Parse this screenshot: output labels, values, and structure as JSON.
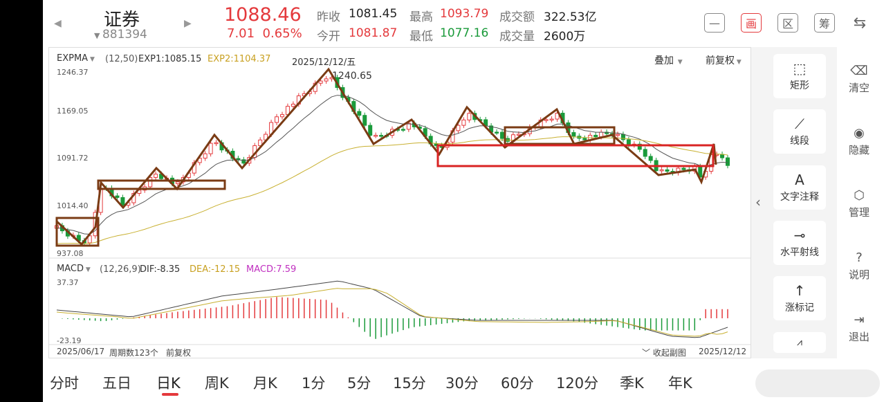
{
  "header": {
    "title": "证券",
    "code": "881394",
    "price": "1088.46",
    "change": "7.01",
    "change_pct": "0.65%",
    "stats": {
      "prev_close_label": "昨收",
      "prev_close": "1081.45",
      "high_label": "最高",
      "high": "1093.79",
      "turnover_label": "成交额",
      "turnover": "322.53亿",
      "open_label": "今开",
      "open": "1081.87",
      "low_label": "最低",
      "low": "1077.16",
      "volume_label": "成交量",
      "volume": "2600万"
    },
    "toolbar": [
      {
        "name": "minimize-button",
        "glyph": "—"
      },
      {
        "name": "draw-button",
        "glyph": "画"
      },
      {
        "name": "range-button",
        "glyph": "区"
      },
      {
        "name": "chips-button",
        "glyph": "筹"
      },
      {
        "name": "phone-rotate-button",
        "glyph": "⇆"
      }
    ]
  },
  "main_chart": {
    "indicator": "EXPMA",
    "params": "(12,50)",
    "exp1": "EXP1:1085.15",
    "exp2": "EXP2:1104.37",
    "date": "2025/12/12/五",
    "overlay": "叠加",
    "adjust": "前复权",
    "y_ticks": [
      "1246.37",
      "1169.05",
      "1091.72",
      "1014.40",
      "937.08"
    ],
    "peak_label": "1240.65",
    "colors": {
      "up": "#e4393c",
      "down": "#1a9a3a",
      "exp1": "#555555",
      "exp2": "#c8b030",
      "annot": "#7a3b14",
      "rect_red": "#d92323"
    }
  },
  "macd": {
    "indicator": "MACD",
    "params": "(12,26,9)",
    "dif": "DIF:-8.35",
    "dea": "DEA:-12.15",
    "macd": "MACD:7.59",
    "y_top": "37.37",
    "y_bottom": "-23.19"
  },
  "footer": {
    "start_date": "2025/06/17",
    "period_count": "周期数123个",
    "adjust": "前复权",
    "collapse": "收起副图",
    "end_date": "2025/12/12"
  },
  "drawing_tools": [
    {
      "name": "rectangle-tool",
      "icon": "⬚",
      "label": "矩形"
    },
    {
      "name": "segment-tool",
      "icon": "⟋",
      "label": "线段"
    },
    {
      "name": "text-annotation-tool",
      "icon": "A",
      "label": "文字注释"
    },
    {
      "name": "horizontal-ray-tool",
      "icon": "⊸",
      "label": "水平射线"
    },
    {
      "name": "rise-mark-tool",
      "icon": "↑",
      "label": "涨标记"
    }
  ],
  "side_actions": [
    {
      "name": "clear-button",
      "icon": "⌫",
      "label": "清空"
    },
    {
      "name": "hide-button",
      "icon": "◉",
      "label": "隐藏"
    },
    {
      "name": "manage-button",
      "icon": "⬡",
      "label": "管理"
    },
    {
      "name": "help-button",
      "icon": "?",
      "label": "说明"
    },
    {
      "name": "exit-button",
      "icon": "⇥",
      "label": "退出"
    }
  ],
  "period_tabs": [
    "分时",
    "五日",
    "日K",
    "周K",
    "月K",
    "1分",
    "5分",
    "15分",
    "30分",
    "60分",
    "120分",
    "季K",
    "年K"
  ],
  "active_tab": "日K"
}
